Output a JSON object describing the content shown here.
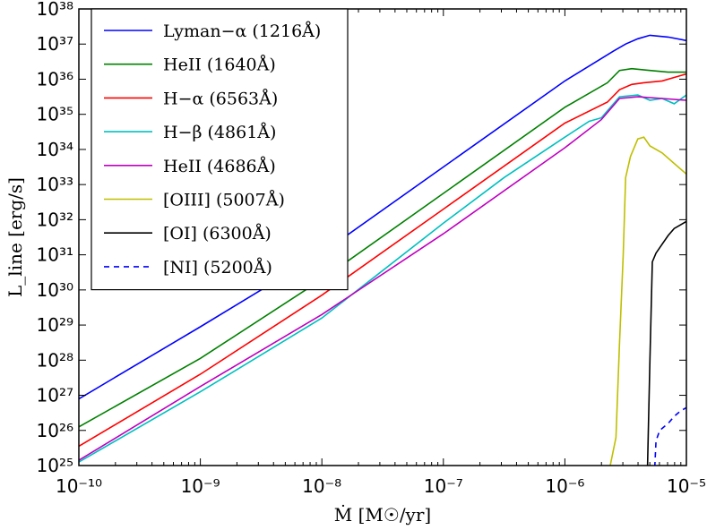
{
  "chart_data": {
    "type": "line",
    "xscale": "log",
    "yscale": "log",
    "xlim_exp": [
      -10,
      -5
    ],
    "ylim_exp": [
      25,
      38
    ],
    "xlabel": "Ṁ  [M☉/yr]",
    "ylabel": "L_line  [erg/s]",
    "x_tick_labels": [
      "10⁻¹⁰",
      "10⁻⁹",
      "10⁻⁸",
      "10⁻⁷",
      "10⁻⁶",
      "10⁻⁵"
    ],
    "y_tick_labels": [
      "10²⁵",
      "10²⁶",
      "10²⁷",
      "10²⁸",
      "10²⁹",
      "10³⁰",
      "10³¹",
      "10³²",
      "10³³",
      "10³⁴",
      "10³⁵",
      "10³⁶",
      "10³⁷",
      "10³⁸"
    ],
    "legend_position": "upper-left",
    "series": [
      {
        "name": "Lyman−α (1216Å)",
        "color": "#0000ff",
        "dash": false,
        "points": [
          [
            -10,
            26.9
          ],
          [
            -9,
            28.95
          ],
          [
            -8,
            31.05
          ],
          [
            -7,
            33.5
          ],
          [
            -6,
            35.95
          ],
          [
            -5.6,
            36.8
          ],
          [
            -5.5,
            37.0
          ],
          [
            -5.4,
            37.15
          ],
          [
            -5.3,
            37.25
          ],
          [
            -5.15,
            37.2
          ],
          [
            -5,
            37.1
          ]
        ]
      },
      {
        "name": "HeII (1640Å)",
        "color": "#008000",
        "dash": false,
        "points": [
          [
            -10,
            26.1
          ],
          [
            -9,
            28.05
          ],
          [
            -8,
            30.3
          ],
          [
            -7,
            32.75
          ],
          [
            -6,
            35.2
          ],
          [
            -5.65,
            35.9
          ],
          [
            -5.55,
            36.25
          ],
          [
            -5.45,
            36.3
          ],
          [
            -5.3,
            36.25
          ],
          [
            -5.15,
            36.2
          ],
          [
            -5,
            36.2
          ]
        ]
      },
      {
        "name": "H−α (6563Å)",
        "color": "#ff0000",
        "dash": false,
        "points": [
          [
            -10,
            25.55
          ],
          [
            -9,
            27.6
          ],
          [
            -8,
            29.85
          ],
          [
            -7,
            32.3
          ],
          [
            -6,
            34.75
          ],
          [
            -5.65,
            35.35
          ],
          [
            -5.55,
            35.7
          ],
          [
            -5.45,
            35.85
          ],
          [
            -5.35,
            35.9
          ],
          [
            -5.2,
            35.95
          ],
          [
            -5.1,
            36.05
          ],
          [
            -5,
            36.15
          ]
        ]
      },
      {
        "name": "H−β (4861Å)",
        "color": "#00bfbf",
        "dash": false,
        "points": [
          [
            -10,
            25.1
          ],
          [
            -9,
            27.1
          ],
          [
            -8,
            29.2
          ],
          [
            -7,
            31.9
          ],
          [
            -6.5,
            33.2
          ],
          [
            -6,
            34.35
          ],
          [
            -5.8,
            34.8
          ],
          [
            -5.7,
            34.9
          ],
          [
            -5.55,
            35.5
          ],
          [
            -5.4,
            35.55
          ],
          [
            -5.3,
            35.4
          ],
          [
            -5.2,
            35.45
          ],
          [
            -5.1,
            35.3
          ],
          [
            -5,
            35.55
          ]
        ]
      },
      {
        "name": "HeII (4686Å)",
        "color": "#bf00bf",
        "dash": false,
        "points": [
          [
            -10,
            25.15
          ],
          [
            -9,
            27.25
          ],
          [
            -8,
            29.3
          ],
          [
            -7,
            31.6
          ],
          [
            -6,
            34.05
          ],
          [
            -5.7,
            34.85
          ],
          [
            -5.55,
            35.45
          ],
          [
            -5.4,
            35.5
          ],
          [
            -5.2,
            35.45
          ],
          [
            -5,
            35.4
          ]
        ]
      },
      {
        "name": "[OIII] (5007Å)",
        "color": "#bfbf00",
        "dash": false,
        "points": [
          [
            -5.63,
            24.95
          ],
          [
            -5.58,
            25.8
          ],
          [
            -5.55,
            28.5
          ],
          [
            -5.52,
            31.0
          ],
          [
            -5.5,
            33.2
          ],
          [
            -5.46,
            33.8
          ],
          [
            -5.4,
            34.3
          ],
          [
            -5.35,
            34.35
          ],
          [
            -5.3,
            34.1
          ],
          [
            -5.2,
            33.9
          ],
          [
            -5.1,
            33.6
          ],
          [
            -5,
            33.3
          ]
        ]
      },
      {
        "name": "[OI] (6300Å)",
        "color": "#000000",
        "dash": false,
        "points": [
          [
            -5.32,
            24.95
          ],
          [
            -5.3,
            28.0
          ],
          [
            -5.28,
            30.8
          ],
          [
            -5.25,
            31.05
          ],
          [
            -5.2,
            31.3
          ],
          [
            -5.15,
            31.55
          ],
          [
            -5.1,
            31.75
          ],
          [
            -5.05,
            31.85
          ],
          [
            -5,
            31.95
          ]
        ]
      },
      {
        "name": "[NI] (5200Å)",
        "color": "#0000ff",
        "dash": true,
        "points": [
          [
            -5.26,
            24.95
          ],
          [
            -5.25,
            25.7
          ],
          [
            -5.22,
            26.0
          ],
          [
            -5.15,
            26.2
          ],
          [
            -5.1,
            26.4
          ],
          [
            -5.05,
            26.55
          ],
          [
            -5,
            26.65
          ]
        ]
      }
    ]
  }
}
